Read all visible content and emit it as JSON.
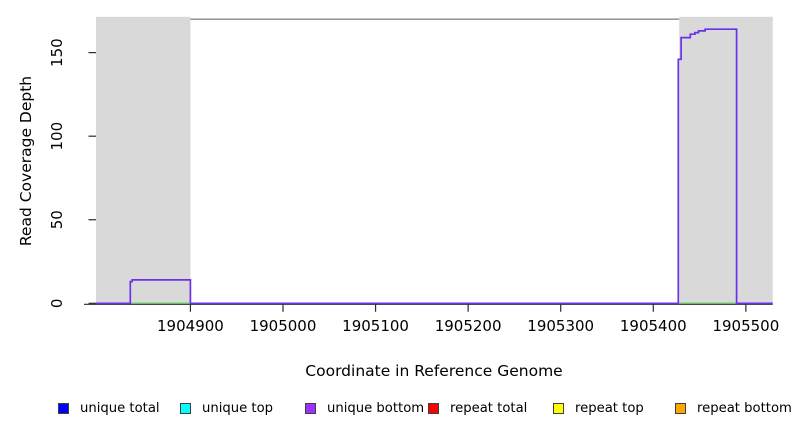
{
  "chart_data": {
    "type": "line",
    "title": "",
    "xlabel": "Coordinate in Reference Genome",
    "ylabel": "Read Coverage Depth",
    "xlim": [
      1904798,
      1905529
    ],
    "ylim": [
      0,
      170
    ],
    "x_ticks": [
      1904900,
      1905000,
      1905100,
      1905200,
      1905300,
      1905400,
      1905500
    ],
    "y_ticks": [
      0,
      50,
      100,
      150
    ],
    "grid": false,
    "colors": {
      "background": "#ffffff",
      "shaded_region": "#d9d9d9",
      "top_border": "#8a8a8a",
      "axis": "#2b2b2b",
      "text": "#000000"
    },
    "shaded_regions": [
      {
        "name": "left-gray-region",
        "x0": 1904798,
        "x1": 1904900
      },
      {
        "name": "right-gray-region",
        "x0": 1905428,
        "x1": 1905529
      }
    ],
    "series": [
      {
        "name": "baseline-green-line",
        "color": "#63c063",
        "width": 1.4,
        "points": [
          [
            1904798,
            0
          ],
          [
            1905529,
            0
          ]
        ]
      },
      {
        "name": "unique-bottom-coverage-line",
        "color": "#6b31ec",
        "width": 1.7,
        "points": [
          [
            1904798,
            0
          ],
          [
            1904835,
            0
          ],
          [
            1904835,
            13
          ],
          [
            1904837,
            13
          ],
          [
            1904837,
            14
          ],
          [
            1904900,
            14
          ],
          [
            1904900,
            0
          ],
          [
            1905427,
            0
          ],
          [
            1905427,
            146
          ],
          [
            1905430,
            146
          ],
          [
            1905430,
            159
          ],
          [
            1905440,
            159
          ],
          [
            1905440,
            161
          ],
          [
            1905445,
            161
          ],
          [
            1905445,
            162
          ],
          [
            1905449,
            162
          ],
          [
            1905449,
            163
          ],
          [
            1905456,
            163
          ],
          [
            1905456,
            164
          ],
          [
            1905490,
            164
          ],
          [
            1905490,
            0
          ],
          [
            1905529,
            0
          ]
        ]
      }
    ],
    "legend_position": "bottom",
    "legend": [
      {
        "label": "unique total",
        "color": "#0000ff"
      },
      {
        "label": "unique top",
        "color": "#00ffff"
      },
      {
        "label": "unique bottom",
        "color": "#9b30ff"
      },
      {
        "label": "repeat total",
        "color": "#ff0000"
      },
      {
        "label": "repeat top",
        "color": "#ffff00"
      },
      {
        "label": "repeat bottom",
        "color": "#ffa500"
      }
    ]
  }
}
